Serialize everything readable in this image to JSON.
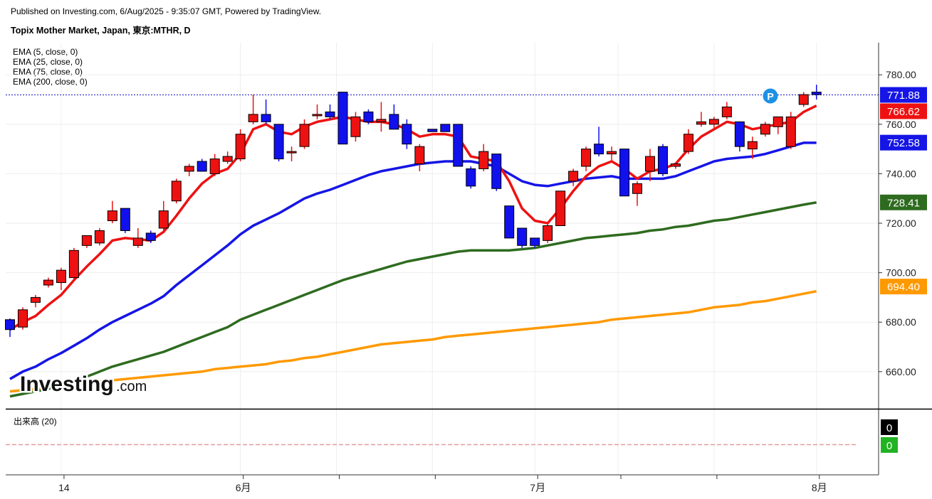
{
  "header": {
    "published": "Published on Investing.com, 6/Aug/2025 - 9:35:07 GMT, Powered by TradingView.",
    "title": "Topix Mother Market, Japan, 東京:MTHR, D"
  },
  "indicators": [
    "EMA (5, close, 0)",
    "EMA (25, close, 0)",
    "EMA (75, close, 0)",
    "EMA (200, close, 0)"
  ],
  "volume_pane": {
    "title": "出来高 (20)",
    "tags": [
      "0",
      "0"
    ]
  },
  "logo": {
    "brand": "Investing",
    "suffix": ".com"
  },
  "event_marker": "P",
  "colors": {
    "up": "#ee1111",
    "down": "#1111ee",
    "ema5": "#ee1111",
    "ema25": "#1515e6",
    "ema75": "#2e6b1f",
    "ema200": "#ff9900",
    "last_price_line": "#1515c8"
  },
  "chart_data": {
    "type": "candlestick",
    "ylim": [
      645,
      793
    ],
    "y_ticks": [
      660,
      680,
      700,
      720,
      740,
      760,
      780
    ],
    "y_tick_labels": [
      "660.00",
      "680.00",
      "700.00",
      "720.00",
      "740.00",
      "760.00",
      "780.00"
    ],
    "x_labels": [
      "14",
      "6月",
      "7月",
      "8月"
    ],
    "x_label_index": [
      4,
      18,
      41,
      63
    ],
    "price_tags": [
      {
        "label": "771.88",
        "value": 771.88,
        "color": "#1515e6"
      },
      {
        "label": "766.62",
        "value": 766.62,
        "color": "#ee1111"
      },
      {
        "label": "752.58",
        "value": 752.58,
        "color": "#1515e6"
      },
      {
        "label": "728.41",
        "value": 728.41,
        "color": "#2e6b1f"
      },
      {
        "label": "694.40",
        "value": 694.4,
        "color": "#ff9900"
      }
    ],
    "candles": [
      {
        "o": 681,
        "h": 681.5,
        "l": 674,
        "c": 677
      },
      {
        "o": 678,
        "h": 686,
        "l": 677,
        "c": 685
      },
      {
        "o": 688,
        "h": 691,
        "l": 686,
        "c": 690
      },
      {
        "o": 695,
        "h": 698,
        "l": 694,
        "c": 697
      },
      {
        "o": 696,
        "h": 702,
        "l": 693,
        "c": 701
      },
      {
        "o": 698,
        "h": 710,
        "l": 697,
        "c": 709
      },
      {
        "o": 711,
        "h": 715,
        "l": 710,
        "c": 715
      },
      {
        "o": 712,
        "h": 718,
        "l": 711,
        "c": 717
      },
      {
        "o": 721,
        "h": 729,
        "l": 720,
        "c": 725
      },
      {
        "o": 726,
        "h": 726,
        "l": 716,
        "c": 717
      },
      {
        "o": 711,
        "h": 718,
        "l": 710,
        "c": 714
      },
      {
        "o": 716,
        "h": 717,
        "l": 712,
        "c": 713
      },
      {
        "o": 718,
        "h": 729,
        "l": 716,
        "c": 725
      },
      {
        "o": 729,
        "h": 738,
        "l": 728,
        "c": 737
      },
      {
        "o": 741,
        "h": 744,
        "l": 739,
        "c": 743
      },
      {
        "o": 745,
        "h": 746,
        "l": 741,
        "c": 741
      },
      {
        "o": 740,
        "h": 748,
        "l": 739,
        "c": 746
      },
      {
        "o": 745,
        "h": 749,
        "l": 744,
        "c": 747
      },
      {
        "o": 746,
        "h": 758,
        "l": 745,
        "c": 756
      },
      {
        "o": 761,
        "h": 772,
        "l": 760,
        "c": 764
      },
      {
        "o": 764,
        "h": 770,
        "l": 760,
        "c": 761
      },
      {
        "o": 760,
        "h": 760,
        "l": 745,
        "c": 746
      },
      {
        "o": 749,
        "h": 751,
        "l": 745,
        "c": 749
      },
      {
        "o": 751,
        "h": 762,
        "l": 750,
        "c": 760
      },
      {
        "o": 764,
        "h": 768,
        "l": 762,
        "c": 764
      },
      {
        "o": 765,
        "h": 768,
        "l": 762,
        "c": 763
      },
      {
        "o": 773,
        "h": 773,
        "l": 752,
        "c": 752
      },
      {
        "o": 755,
        "h": 765,
        "l": 753,
        "c": 763
      },
      {
        "o": 765,
        "h": 766,
        "l": 760,
        "c": 761
      },
      {
        "o": 761,
        "h": 769,
        "l": 757,
        "c": 762
      },
      {
        "o": 764,
        "h": 768,
        "l": 758,
        "c": 758
      },
      {
        "o": 760,
        "h": 762,
        "l": 750,
        "c": 752
      },
      {
        "o": 744,
        "h": 752,
        "l": 741,
        "c": 751
      },
      {
        "o": 758,
        "h": 758,
        "l": 757,
        "c": 757
      },
      {
        "o": 760,
        "h": 760,
        "l": 757,
        "c": 757
      },
      {
        "o": 760,
        "h": 760,
        "l": 743,
        "c": 743
      },
      {
        "o": 742,
        "h": 743,
        "l": 734,
        "c": 735
      },
      {
        "o": 742,
        "h": 752,
        "l": 741,
        "c": 749
      },
      {
        "o": 748,
        "h": 748,
        "l": 733,
        "c": 734
      },
      {
        "o": 727,
        "h": 727,
        "l": 714,
        "c": 714
      },
      {
        "o": 718,
        "h": 718,
        "l": 710,
        "c": 711
      },
      {
        "o": 714,
        "h": 714,
        "l": 710,
        "c": 711
      },
      {
        "o": 713,
        "h": 720,
        "l": 712,
        "c": 719
      },
      {
        "o": 719,
        "h": 733,
        "l": 719,
        "c": 733
      },
      {
        "o": 737,
        "h": 742,
        "l": 735,
        "c": 741
      },
      {
        "o": 743,
        "h": 751,
        "l": 741,
        "c": 750
      },
      {
        "o": 752,
        "h": 759,
        "l": 747,
        "c": 748
      },
      {
        "o": 748,
        "h": 751,
        "l": 745,
        "c": 749
      },
      {
        "o": 750,
        "h": 750,
        "l": 731,
        "c": 731
      },
      {
        "o": 732,
        "h": 737,
        "l": 727,
        "c": 736
      },
      {
        "o": 741,
        "h": 750,
        "l": 737,
        "c": 747
      },
      {
        "o": 751,
        "h": 752,
        "l": 739,
        "c": 740
      },
      {
        "o": 743,
        "h": 744,
        "l": 742,
        "c": 744
      },
      {
        "o": 749,
        "h": 758,
        "l": 748,
        "c": 756
      },
      {
        "o": 760,
        "h": 765,
        "l": 759,
        "c": 761
      },
      {
        "o": 760,
        "h": 763,
        "l": 758,
        "c": 762
      },
      {
        "o": 763,
        "h": 769,
        "l": 762,
        "c": 767
      },
      {
        "o": 761,
        "h": 761,
        "l": 749,
        "c": 751
      },
      {
        "o": 750,
        "h": 755,
        "l": 746,
        "c": 753
      },
      {
        "o": 756,
        "h": 761,
        "l": 755,
        "c": 760
      },
      {
        "o": 759,
        "h": 762,
        "l": 756,
        "c": 763
      },
      {
        "o": 751,
        "h": 765,
        "l": 750,
        "c": 763
      },
      {
        "o": 768,
        "h": 773,
        "l": 767,
        "c": 772
      },
      {
        "o": 773,
        "h": 776,
        "l": 770,
        "c": 772
      }
    ],
    "ema5": [
      677,
      680,
      682.5,
      687,
      691,
      697,
      702.5,
      707.5,
      713,
      714,
      713.5,
      713,
      716.5,
      723,
      730,
      736,
      740,
      742,
      748,
      758,
      760,
      757,
      756,
      759,
      761,
      762,
      763,
      762,
      761,
      761,
      760,
      758,
      755,
      756,
      756,
      755,
      747,
      746,
      745,
      737,
      726,
      721,
      720,
      726,
      733,
      739,
      743,
      745,
      742,
      738,
      741,
      742,
      744,
      750,
      755,
      758,
      761,
      760,
      758,
      759,
      760,
      761,
      765,
      767.5
    ],
    "ema25": [
      657,
      660,
      662,
      665,
      667.5,
      670.5,
      673.5,
      677,
      680,
      682.5,
      685,
      687.5,
      690.5,
      695,
      699,
      703,
      707,
      711,
      715.5,
      719,
      721.5,
      724,
      727,
      730,
      732,
      733.5,
      735.5,
      737.5,
      739.5,
      741,
      742,
      743,
      744,
      744.5,
      745,
      745,
      745,
      744,
      743,
      740,
      737,
      735.5,
      735,
      736,
      737,
      738,
      738.5,
      739,
      738,
      738,
      738,
      738,
      739,
      741,
      743,
      745,
      746,
      746.5,
      747,
      748,
      749.5,
      751,
      752.5,
      752.5
    ],
    "ema75": [
      650,
      651,
      652,
      653,
      655,
      656,
      658,
      660,
      662,
      663.5,
      665,
      666.5,
      668,
      670,
      672,
      674,
      676,
      678,
      681,
      683,
      685,
      687,
      689,
      691,
      693,
      695,
      697,
      698.5,
      700,
      701.5,
      703,
      704.5,
      705.5,
      706.5,
      707.5,
      708.5,
      709,
      709,
      709,
      709,
      709.5,
      710,
      711,
      712,
      713,
      714,
      714.5,
      715,
      715.5,
      716,
      717,
      717.5,
      718.5,
      719,
      720,
      721,
      721.5,
      722.5,
      723.5,
      724.5,
      725.5,
      726.5,
      727.5,
      728.4
    ],
    "ema200": [
      652,
      652.5,
      653,
      653.5,
      654.5,
      655,
      655.5,
      656,
      656.5,
      657,
      657.5,
      658,
      658.5,
      659,
      659.5,
      660,
      661,
      661.5,
      662,
      662.5,
      663,
      664,
      664.5,
      665.5,
      666,
      667,
      668,
      669,
      670,
      671,
      671.5,
      672,
      672.5,
      673,
      674,
      674.5,
      675,
      675.5,
      676,
      676.5,
      677,
      677.5,
      678,
      678.5,
      679,
      679.5,
      680,
      681,
      681.5,
      682,
      682.5,
      683,
      683.5,
      684,
      685,
      686,
      686.5,
      687,
      688,
      688.5,
      689.5,
      690.5,
      691.5,
      692.5
    ]
  }
}
